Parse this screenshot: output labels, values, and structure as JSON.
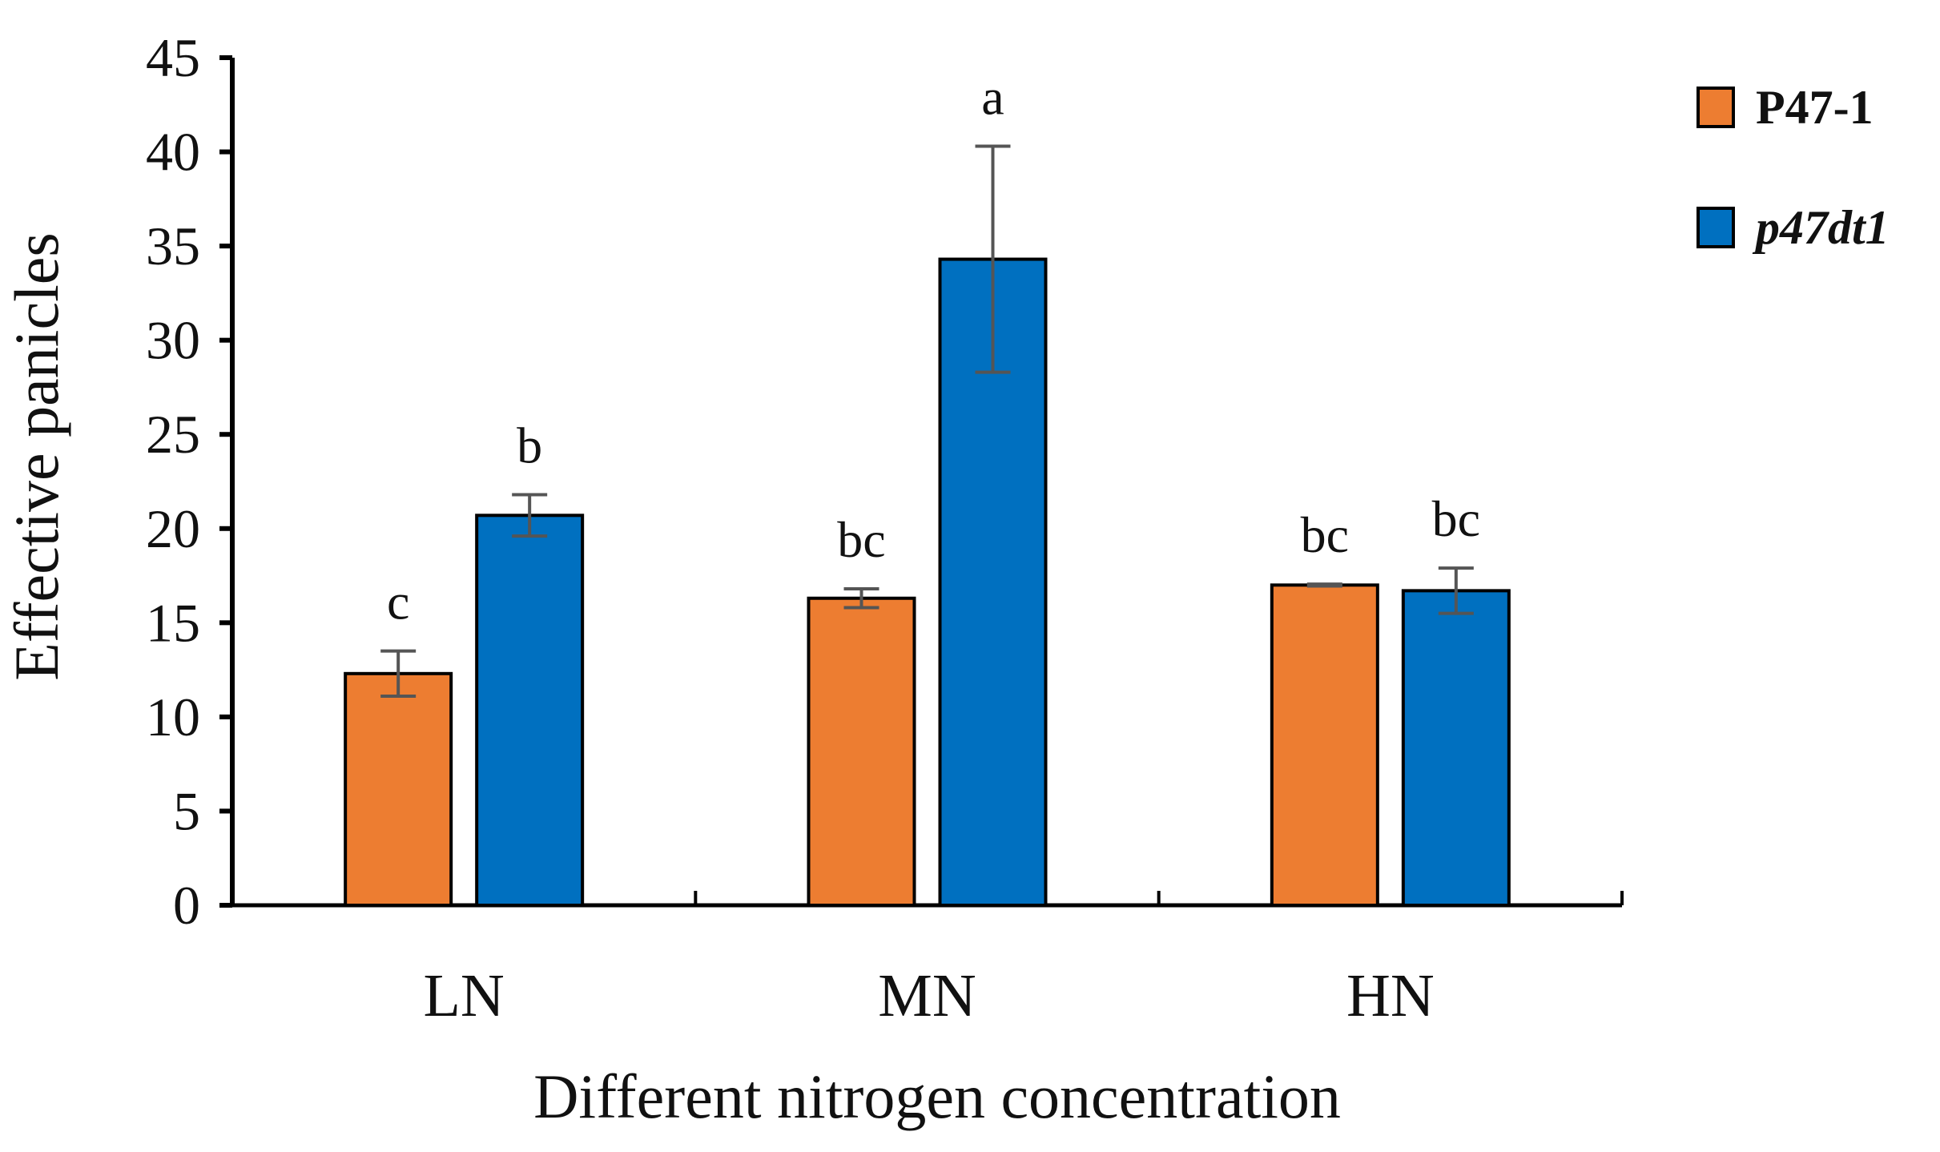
{
  "chart_data": {
    "type": "bar",
    "title": "",
    "xlabel": "Different nitrogen concentration",
    "ylabel": "Effective panicles",
    "categories": [
      "LN",
      "MN",
      "HN"
    ],
    "ylim": [
      0,
      45
    ],
    "yticks": [
      0,
      5,
      10,
      15,
      20,
      25,
      30,
      35,
      40,
      45
    ],
    "grid": false,
    "legend_position": "top-right",
    "series": [
      {
        "name": "P47-1",
        "color": "#ED7D31",
        "italic": false,
        "values": [
          12.3,
          16.3,
          17.0
        ],
        "errors": [
          1.2,
          0.5,
          0.05
        ],
        "labels": [
          "c",
          "bc",
          "bc"
        ]
      },
      {
        "name": "p47dt1",
        "color": "#0070C0",
        "italic": true,
        "values": [
          20.7,
          34.3,
          16.7
        ],
        "errors": [
          1.1,
          6.0,
          1.2
        ],
        "labels": [
          "b",
          "a",
          "bc"
        ]
      }
    ]
  }
}
